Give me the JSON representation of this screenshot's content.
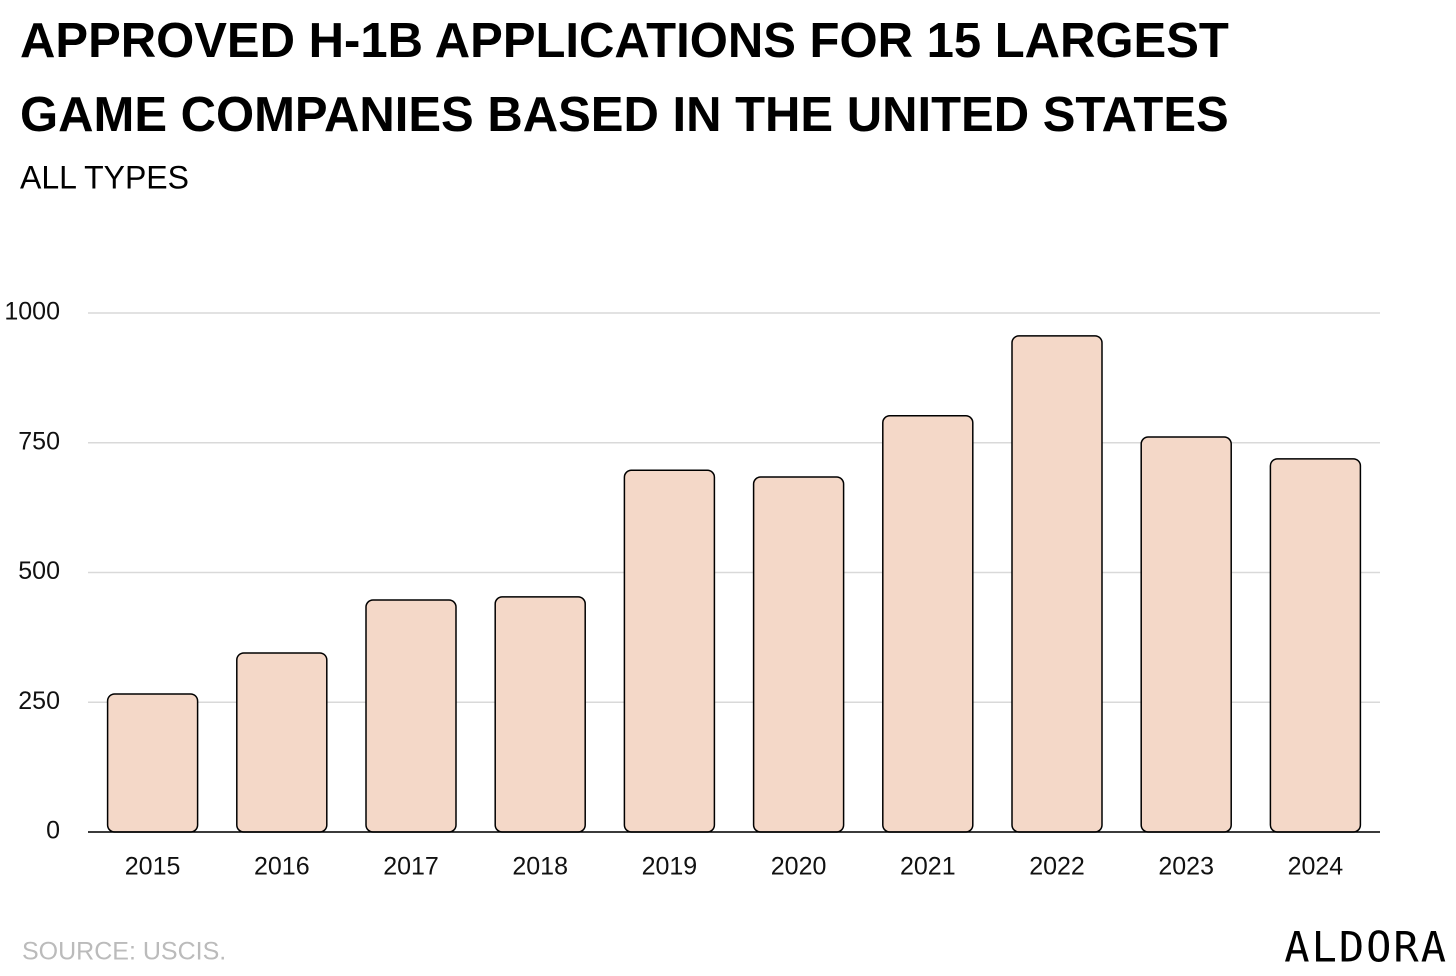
{
  "chart_data": {
    "type": "bar",
    "title": [
      "APPROVED H-1B APPLICATIONS FOR 15 LARGEST",
      "GAME COMPANIES BASED IN THE UNITED STATES"
    ],
    "subtitle": "ALL TYPES",
    "source": "SOURCE: USCIS.",
    "logo": "ALDORA",
    "categories": [
      "2015",
      "2016",
      "2017",
      "2018",
      "2019",
      "2020",
      "2021",
      "2022",
      "2023",
      "2024"
    ],
    "values": [
      266,
      345,
      447,
      453,
      697,
      684,
      802,
      956,
      761,
      719
    ],
    "color": "#f4d8c8",
    "ylim": [
      0,
      1000
    ],
    "yticks": [
      0,
      250,
      500,
      750,
      1000
    ],
    "grid": true
  }
}
